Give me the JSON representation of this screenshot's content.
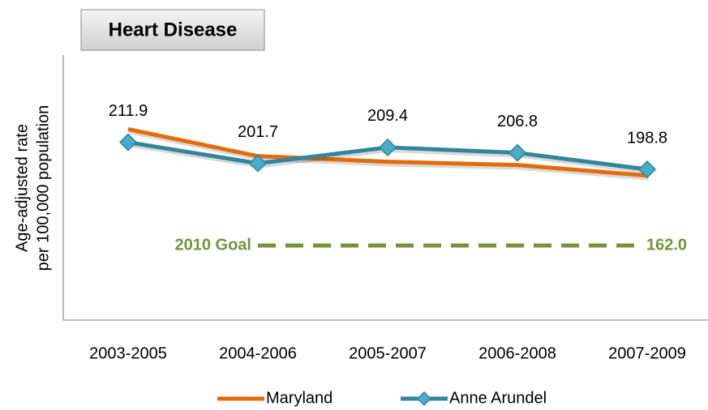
{
  "chart_data": {
    "type": "line",
    "title": "Heart Disease",
    "y_label": [
      "Age-adjusted rate",
      "per 100,000 population"
    ],
    "categories": [
      "2003-2005",
      "2004-2006",
      "2005-2007",
      "2006-2008",
      "2007-2009"
    ],
    "series": [
      {
        "name": "Maryland",
        "color": "#e36c09",
        "values": [
          218.2,
          205.2,
          202.5,
          200.9,
          195.8
        ]
      },
      {
        "name": "Anne Arundel",
        "color": "#31859c",
        "values": [
          211.9,
          201.7,
          209.4,
          206.8,
          198.8
        ]
      }
    ],
    "data_labels_series": 1,
    "goal": {
      "label": "2010 Goal",
      "value": 162,
      "value_label": "162.0",
      "color": "#77933c"
    },
    "ylim": [
      126,
      254
    ],
    "legend": "bottom"
  }
}
